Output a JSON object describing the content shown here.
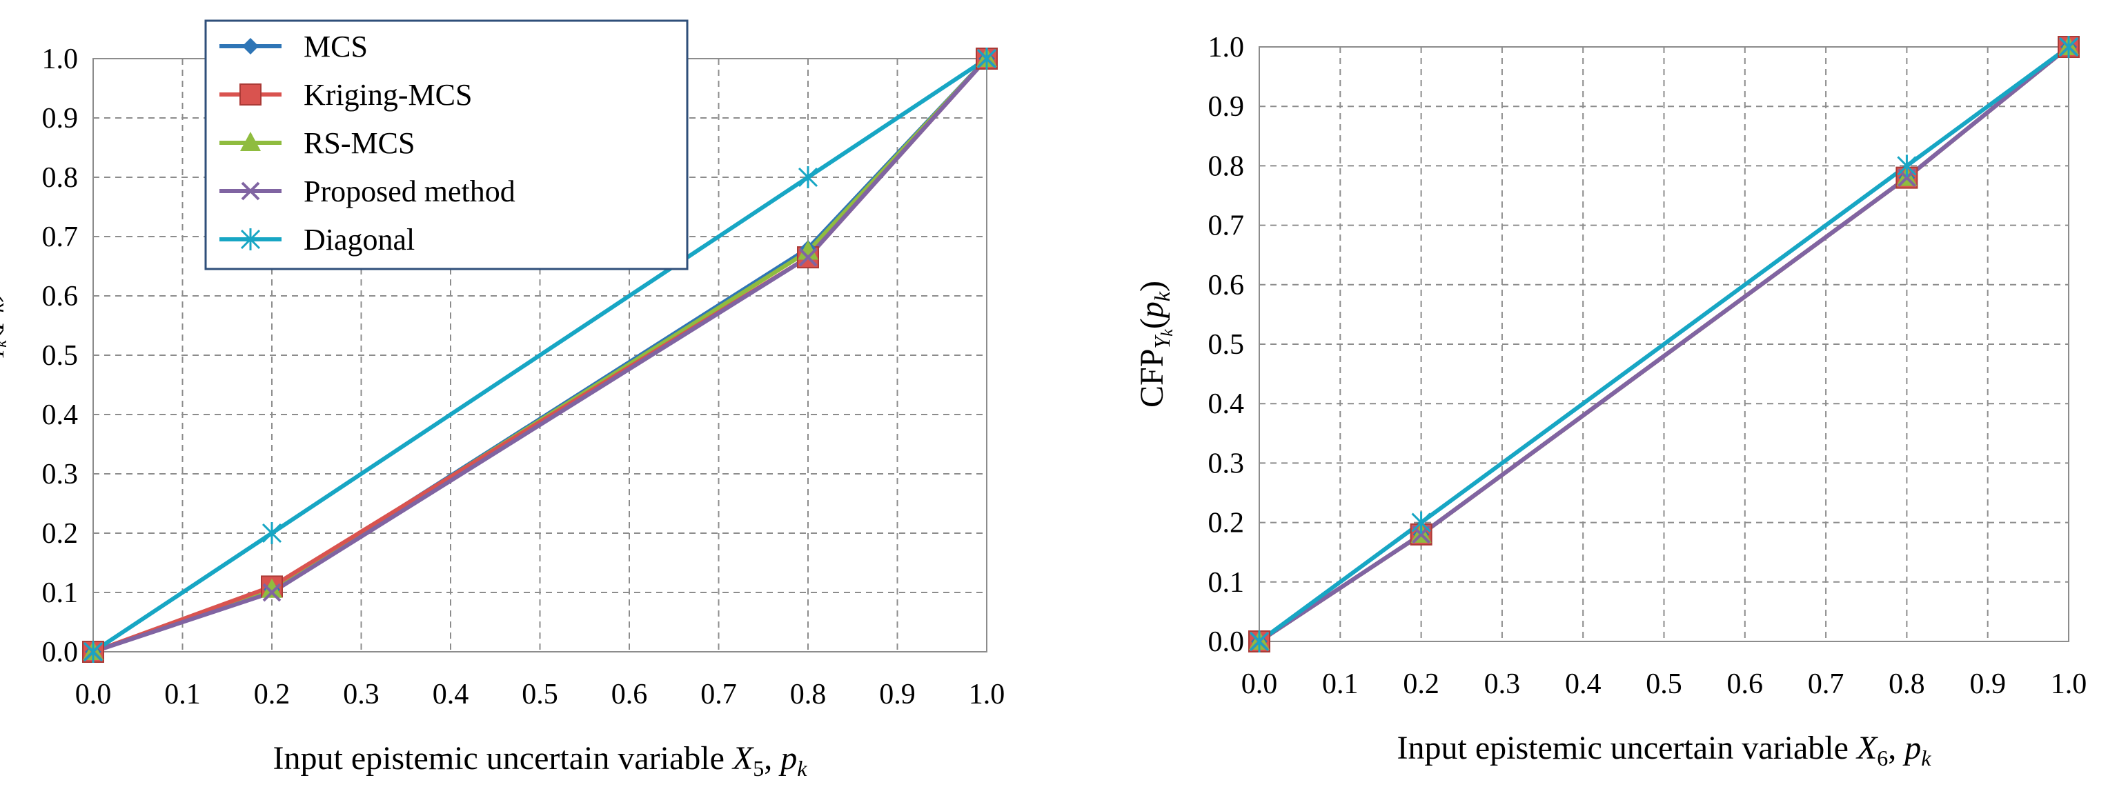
{
  "chart_data": [
    {
      "type": "line",
      "title": "",
      "xlabel": "Input epistemic uncertain variable X5, pk",
      "xlabel_parts": [
        "Input epistemic uncertain variable ",
        "X",
        "5",
        ", ",
        "p",
        "k"
      ],
      "ylabel": "CFPYk(pk)",
      "ylabel_parts": [
        "CFP",
        "Y",
        "k",
        "(",
        "p",
        "k",
        ")"
      ],
      "xlim": [
        0,
        1
      ],
      "ylim": [
        0,
        1
      ],
      "xticks": [
        "0.0",
        "0.1",
        "0.2",
        "0.3",
        "0.4",
        "0.5",
        "0.6",
        "0.7",
        "0.8",
        "0.9",
        "1.0"
      ],
      "yticks": [
        "0.0",
        "0.1",
        "0.2",
        "0.3",
        "0.4",
        "0.5",
        "0.6",
        "0.7",
        "0.8",
        "0.9",
        "1.0"
      ],
      "grid": true,
      "legend_position": "top-left",
      "series": [
        {
          "name": "MCS",
          "color": "#2e75b6",
          "marker": "diamond",
          "x": [
            0,
            0.2,
            0.8,
            1.0
          ],
          "y": [
            0,
            0.105,
            0.68,
            1.0
          ]
        },
        {
          "name": "Kriging-MCS",
          "color": "#d9534f",
          "marker": "square",
          "x": [
            0,
            0.2,
            0.8,
            1.0
          ],
          "y": [
            0,
            0.11,
            0.665,
            1.0
          ]
        },
        {
          "name": "RS-MCS",
          "color": "#8fbc3f",
          "marker": "triangle",
          "x": [
            0,
            0.2,
            0.8,
            1.0
          ],
          "y": [
            0,
            0.105,
            0.675,
            1.0
          ]
        },
        {
          "name": "Proposed method",
          "color": "#8064a2",
          "marker": "x",
          "x": [
            0,
            0.2,
            0.8,
            1.0
          ],
          "y": [
            0,
            0.1,
            0.665,
            1.0
          ]
        },
        {
          "name": "Diagonal",
          "color": "#17a6c4",
          "marker": "asterisk",
          "x": [
            0,
            0.2,
            0.8,
            1.0
          ],
          "y": [
            0,
            0.2,
            0.8,
            1.0
          ]
        }
      ]
    },
    {
      "type": "line",
      "title": "",
      "xlabel": "Input epistemic uncertain variable X6, pk",
      "xlabel_parts": [
        "Input epistemic uncertain variable ",
        "X",
        "6",
        ", ",
        "p",
        "k"
      ],
      "ylabel": "CFPYk(pk)",
      "ylabel_parts": [
        "CFP",
        "Y",
        "k",
        "(",
        "p",
        "k",
        ")"
      ],
      "xlim": [
        0,
        1
      ],
      "ylim": [
        0,
        1
      ],
      "xticks": [
        "0.0",
        "0.1",
        "0.2",
        "0.3",
        "0.4",
        "0.5",
        "0.6",
        "0.7",
        "0.8",
        "0.9",
        "1.0"
      ],
      "yticks": [
        "0.0",
        "0.1",
        "0.2",
        "0.3",
        "0.4",
        "0.5",
        "0.6",
        "0.7",
        "0.8",
        "0.9",
        "1.0"
      ],
      "grid": true,
      "legend_position": "none",
      "series": [
        {
          "name": "MCS",
          "color": "#2e75b6",
          "marker": "diamond",
          "x": [
            0,
            0.2,
            0.8,
            1.0
          ],
          "y": [
            0,
            0.18,
            0.78,
            1.0
          ]
        },
        {
          "name": "Kriging-MCS",
          "color": "#d9534f",
          "marker": "square",
          "x": [
            0,
            0.2,
            0.8,
            1.0
          ],
          "y": [
            0,
            0.18,
            0.78,
            1.0
          ]
        },
        {
          "name": "RS-MCS",
          "color": "#8fbc3f",
          "marker": "triangle",
          "x": [
            0,
            0.2,
            0.8,
            1.0
          ],
          "y": [
            0,
            0.18,
            0.78,
            1.0
          ]
        },
        {
          "name": "Proposed method",
          "color": "#8064a2",
          "marker": "x",
          "x": [
            0,
            0.2,
            0.8,
            1.0
          ],
          "y": [
            0,
            0.18,
            0.78,
            1.0
          ]
        },
        {
          "name": "Diagonal",
          "color": "#17a6c4",
          "marker": "asterisk",
          "x": [
            0,
            0.2,
            0.8,
            1.0
          ],
          "y": [
            0,
            0.2,
            0.8,
            1.0
          ]
        }
      ]
    }
  ]
}
